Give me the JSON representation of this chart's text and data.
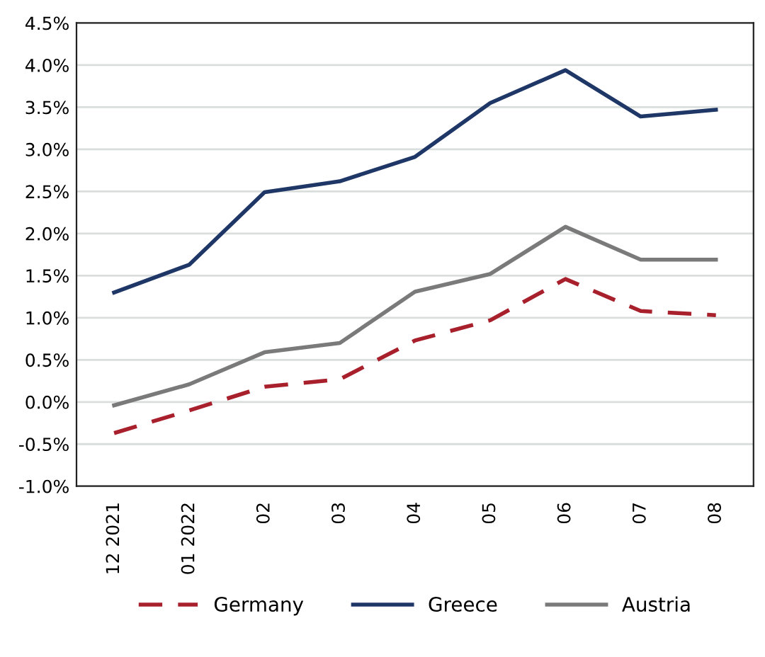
{
  "chart_data": {
    "type": "line",
    "categories": [
      "12 2021",
      "01 2022",
      "02",
      "03",
      "04",
      "05",
      "06",
      "07",
      "08"
    ],
    "series": [
      {
        "name": "Germany",
        "color": "#a8202c",
        "line_style": "dashed",
        "values": [
          -0.37,
          -0.1,
          0.18,
          0.27,
          0.73,
          0.97,
          1.46,
          1.08,
          1.03
        ]
      },
      {
        "name": "Greece",
        "color": "#1f3767",
        "line_style": "solid",
        "values": [
          1.3,
          1.63,
          2.49,
          2.62,
          2.91,
          3.55,
          3.94,
          3.39,
          3.47
        ]
      },
      {
        "name": "Austria",
        "color": "#7a7a7a",
        "line_style": "solid",
        "values": [
          -0.04,
          0.21,
          0.59,
          0.7,
          1.31,
          1.52,
          2.08,
          1.69,
          1.69
        ]
      }
    ],
    "ylim": [
      -1.0,
      4.5
    ],
    "yticks": [
      {
        "value": -1.0,
        "label": "-1.0%"
      },
      {
        "value": -0.5,
        "label": "-0.5%"
      },
      {
        "value": 0.0,
        "label": "0.0%"
      },
      {
        "value": 0.5,
        "label": "0.5%"
      },
      {
        "value": 1.0,
        "label": "1.0%"
      },
      {
        "value": 1.5,
        "label": "1.5%"
      },
      {
        "value": 2.0,
        "label": "2.0%"
      },
      {
        "value": 2.5,
        "label": "2.5%"
      },
      {
        "value": 3.0,
        "label": "3.0%"
      },
      {
        "value": 3.5,
        "label": "3.5%"
      },
      {
        "value": 4.0,
        "label": "4.0%"
      },
      {
        "value": 4.5,
        "label": "4.5%"
      }
    ],
    "grid": "y",
    "legend": "bottom",
    "marker": "none"
  }
}
